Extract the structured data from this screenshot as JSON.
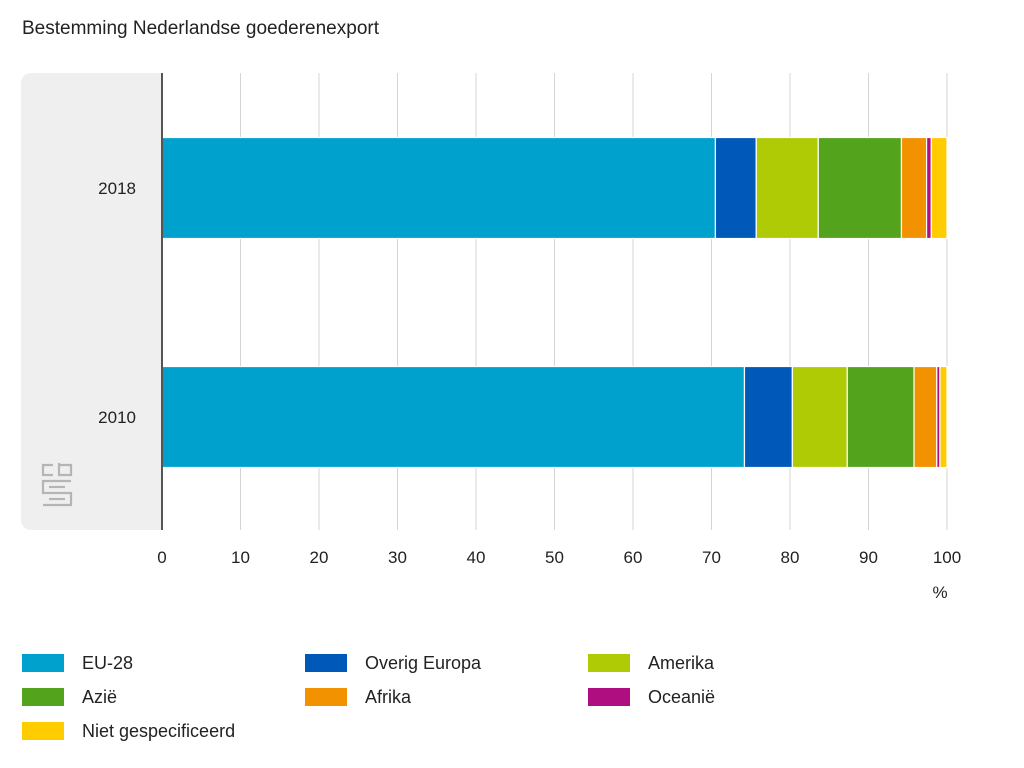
{
  "chart_data": {
    "type": "bar",
    "orientation": "horizontal",
    "stacked": true,
    "title": "Bestemming Nederlandse goederenexport",
    "categories": [
      "2018",
      "2010"
    ],
    "xlabel": "%",
    "xlim": [
      0,
      100
    ],
    "x_ticks": [
      "0",
      "10",
      "20",
      "30",
      "40",
      "50",
      "60",
      "70",
      "80",
      "90",
      "100"
    ],
    "grid": true,
    "legend_position": "bottom",
    "series": [
      {
        "name": "EU-28",
        "color": "#00a1cd",
        "values": [
          70.5,
          74.2
        ]
      },
      {
        "name": "Overig Europa",
        "color": "#0058b8",
        "values": [
          5.2,
          6.1
        ]
      },
      {
        "name": "Amerika",
        "color": "#afcb05",
        "values": [
          7.9,
          7.0
        ]
      },
      {
        "name": "Azië",
        "color": "#53a31d",
        "values": [
          10.6,
          8.5
        ]
      },
      {
        "name": "Afrika",
        "color": "#f39200",
        "values": [
          3.2,
          2.9
        ]
      },
      {
        "name": "Oceanië",
        "color": "#af0e80",
        "values": [
          0.6,
          0.4
        ]
      },
      {
        "name": "Niet gespecificeerd",
        "color": "#ffcc00",
        "values": [
          2.0,
          0.9
        ]
      }
    ]
  },
  "logo": {
    "icon": "cbs-logo-icon"
  }
}
